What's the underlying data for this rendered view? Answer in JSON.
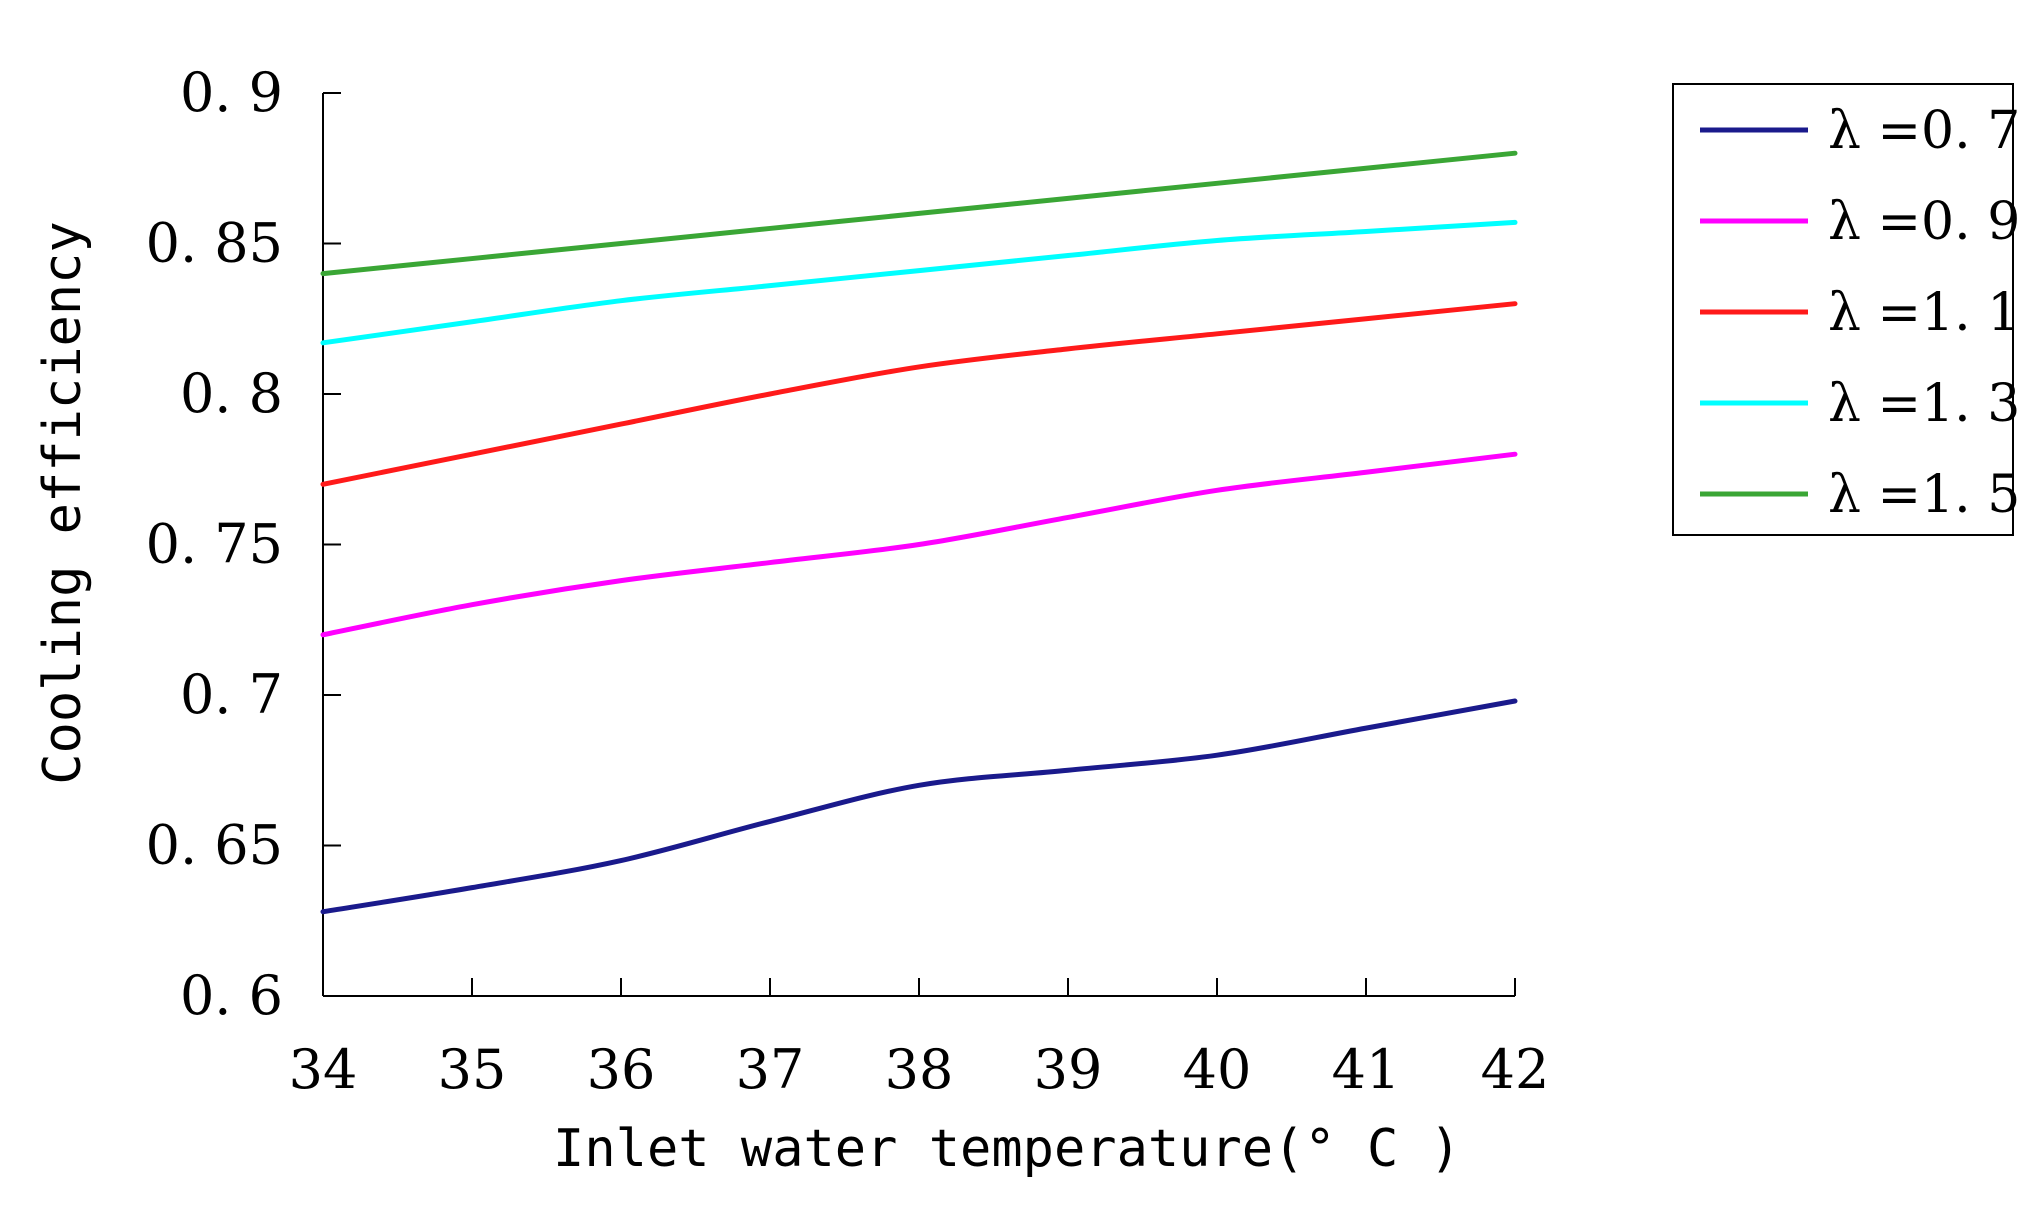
{
  "chart_data": {
    "type": "line",
    "title": "",
    "xlabel": "Inlet water temperature(° C )",
    "ylabel": "Cooling efficiency",
    "xlim": [
      34,
      42
    ],
    "ylim": [
      0.6,
      0.9
    ],
    "x": [
      34,
      35,
      36,
      37,
      38,
      39,
      40,
      41,
      42
    ],
    "x_tick_labels": [
      "34",
      "35",
      "36",
      "37",
      "38",
      "39",
      "40",
      "41",
      "42"
    ],
    "y_ticks": [
      0.6,
      0.65,
      0.7,
      0.75,
      0.8,
      0.85,
      0.9
    ],
    "y_tick_labels": [
      "0. 6",
      "0. 65",
      "0. 7",
      "0. 75",
      "0. 8",
      "0. 85",
      "0. 9"
    ],
    "grid": false,
    "legend_position": "top-right",
    "series": [
      {
        "name": "λ =0. 7",
        "color": "#1a1a8c",
        "values": [
          0.628,
          0.636,
          0.645,
          0.658,
          0.67,
          0.675,
          0.68,
          0.689,
          0.698
        ]
      },
      {
        "name": "λ =0. 9",
        "color": "#ff00ff",
        "values": [
          0.72,
          0.73,
          0.738,
          0.744,
          0.75,
          0.759,
          0.768,
          0.774,
          0.78
        ]
      },
      {
        "name": "λ =1. 1",
        "color": "#ff1a1a",
        "values": [
          0.77,
          0.78,
          0.79,
          0.8,
          0.809,
          0.815,
          0.82,
          0.825,
          0.83
        ]
      },
      {
        "name": "λ =1. 3",
        "color": "#00ffff",
        "values": [
          0.817,
          0.824,
          0.831,
          0.836,
          0.841,
          0.846,
          0.851,
          0.854,
          0.857
        ]
      },
      {
        "name": "λ =1. 5",
        "color": "#3aa635",
        "values": [
          0.84,
          0.845,
          0.85,
          0.855,
          0.86,
          0.865,
          0.87,
          0.875,
          0.88
        ]
      }
    ]
  }
}
